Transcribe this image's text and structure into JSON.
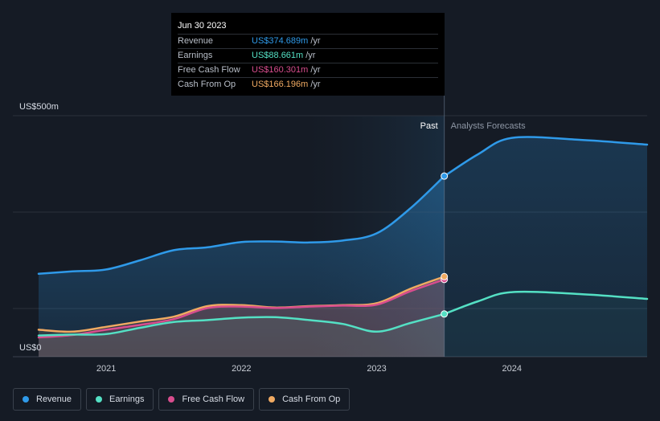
{
  "chart_data": {
    "type": "area",
    "title": "",
    "y_axis": {
      "top_label": "US$500m",
      "bottom_label": "US$0",
      "ylim": [
        0,
        500
      ]
    },
    "x_ticks": [
      "2021",
      "2022",
      "2023",
      "2024"
    ],
    "past_label": "Past",
    "forecast_label": "Analysts Forecasts",
    "series": [
      {
        "name": "Revenue",
        "color": "#2f9ae9",
        "points": [
          [
            2020.5,
            172
          ],
          [
            2020.75,
            177
          ],
          [
            2021.0,
            181
          ],
          [
            2021.25,
            200
          ],
          [
            2021.5,
            221
          ],
          [
            2021.75,
            227
          ],
          [
            2022.0,
            238
          ],
          [
            2022.25,
            239
          ],
          [
            2022.5,
            237
          ],
          [
            2022.75,
            241
          ],
          [
            2023.0,
            256
          ],
          [
            2023.25,
            308
          ],
          [
            2023.5,
            374.689
          ]
        ],
        "forecast": [
          [
            2023.5,
            374.689
          ],
          [
            2023.75,
            420
          ],
          [
            2024.0,
            454
          ],
          [
            2024.5,
            450
          ],
          [
            2025.0,
            440
          ]
        ]
      },
      {
        "name": "Earnings",
        "color": "#54e0c4",
        "points": [
          [
            2020.5,
            44
          ],
          [
            2020.75,
            46
          ],
          [
            2021.0,
            47
          ],
          [
            2021.25,
            60
          ],
          [
            2021.5,
            72
          ],
          [
            2021.75,
            76
          ],
          [
            2022.0,
            81
          ],
          [
            2022.25,
            82
          ],
          [
            2022.5,
            76
          ],
          [
            2022.75,
            68
          ],
          [
            2023.0,
            52
          ],
          [
            2023.25,
            70
          ],
          [
            2023.5,
            88.661
          ]
        ],
        "forecast": [
          [
            2023.5,
            88.661
          ],
          [
            2023.75,
            115
          ],
          [
            2024.0,
            134
          ],
          [
            2024.5,
            130
          ],
          [
            2025.0,
            120
          ]
        ]
      },
      {
        "name": "Free Cash Flow",
        "color": "#d94d8e",
        "points": [
          [
            2020.5,
            40
          ],
          [
            2020.75,
            45
          ],
          [
            2021.0,
            56
          ],
          [
            2021.25,
            66
          ],
          [
            2021.5,
            78
          ],
          [
            2021.75,
            101
          ],
          [
            2022.0,
            104
          ],
          [
            2022.25,
            101
          ],
          [
            2022.5,
            104
          ],
          [
            2022.75,
            106
          ],
          [
            2023.0,
            108
          ],
          [
            2023.25,
            136
          ],
          [
            2023.5,
            160.301
          ]
        ]
      },
      {
        "name": "Cash From Op",
        "color": "#f0aa62",
        "points": [
          [
            2020.5,
            56
          ],
          [
            2020.75,
            52
          ],
          [
            2021.0,
            62
          ],
          [
            2021.25,
            73
          ],
          [
            2021.5,
            83
          ],
          [
            2021.75,
            105
          ],
          [
            2022.0,
            107
          ],
          [
            2022.25,
            102
          ],
          [
            2022.5,
            105
          ],
          [
            2022.75,
            107
          ],
          [
            2023.0,
            111
          ],
          [
            2023.25,
            141
          ],
          [
            2023.5,
            166.196
          ]
        ]
      }
    ]
  },
  "tooltip": {
    "date": "Jun 30 2023",
    "rows": [
      {
        "label": "Revenue",
        "value": "US$374.689m",
        "unit": "/yr",
        "color": "#2f9ae9"
      },
      {
        "label": "Earnings",
        "value": "US$88.661m",
        "unit": "/yr",
        "color": "#54e0c4"
      },
      {
        "label": "Free Cash Flow",
        "value": "US$160.301m",
        "unit": "/yr",
        "color": "#d94d8e"
      },
      {
        "label": "Cash From Op",
        "value": "US$166.196m",
        "unit": "/yr",
        "color": "#f0aa62"
      }
    ]
  },
  "legend": [
    {
      "label": "Revenue",
      "color": "#2f9ae9"
    },
    {
      "label": "Earnings",
      "color": "#54e0c4"
    },
    {
      "label": "Free Cash Flow",
      "color": "#d94d8e"
    },
    {
      "label": "Cash From Op",
      "color": "#f0aa62"
    }
  ]
}
